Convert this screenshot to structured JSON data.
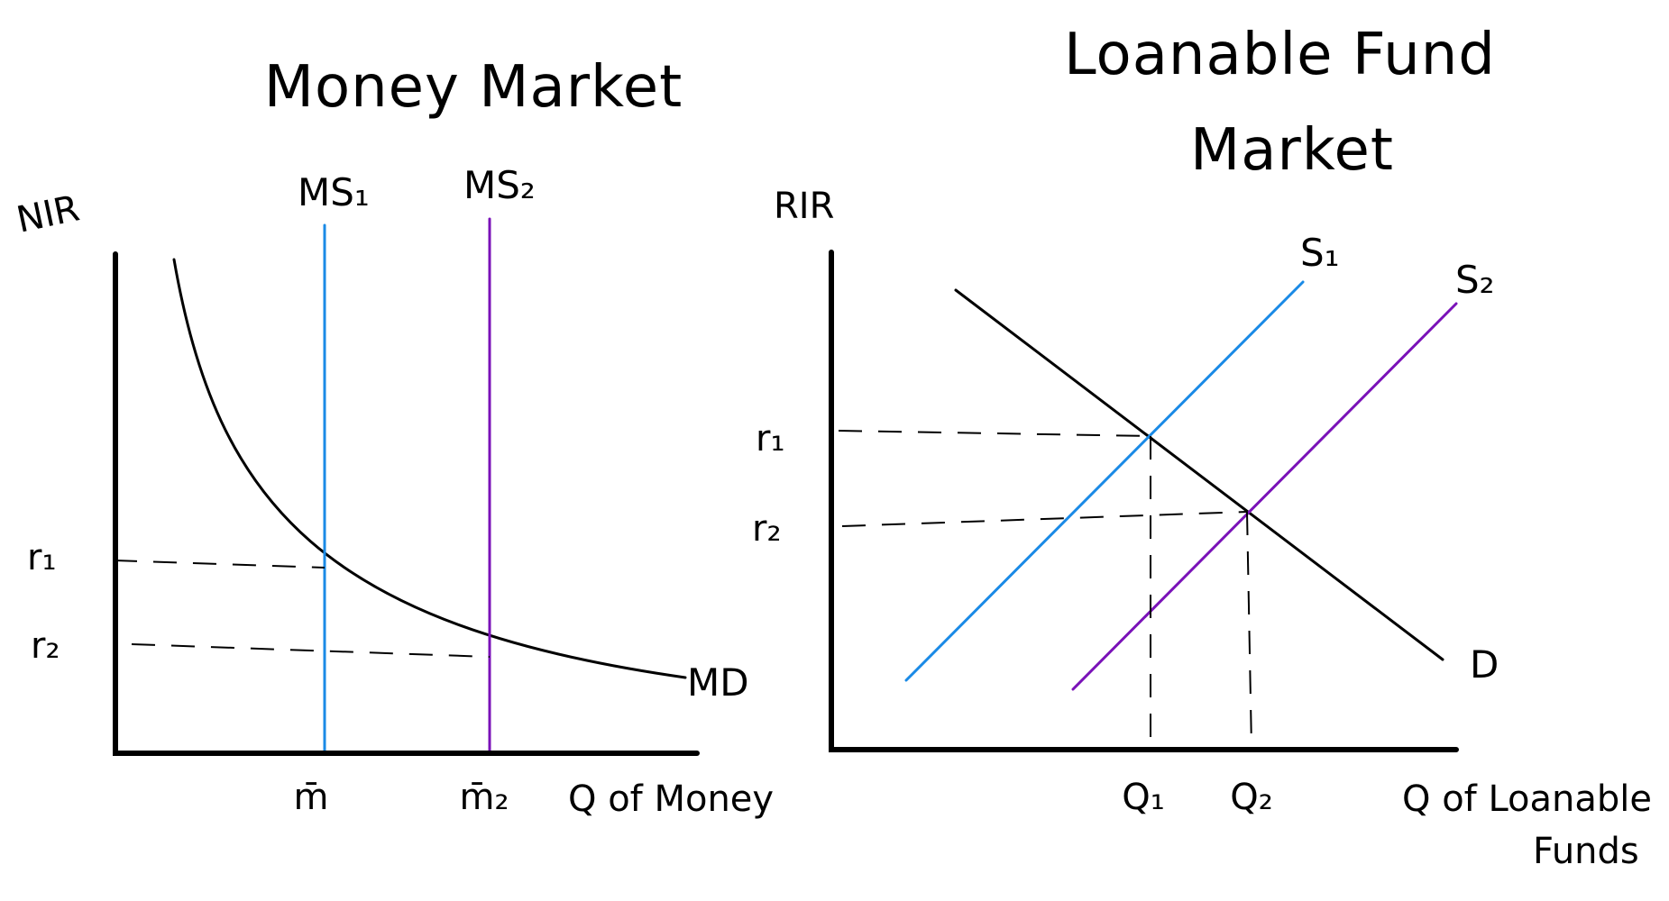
{
  "colors": {
    "ink": "#000000",
    "series1": "#1a8ae6",
    "series2": "#7a12b8"
  },
  "chart_data": [
    {
      "type": "line",
      "title": "Money Market",
      "xlabel": "Q of Money",
      "ylabel": "NIR",
      "grid": false,
      "series": [
        {
          "name": "MD",
          "shape": "downward-sloping curve",
          "color": "#000000"
        },
        {
          "name": "MS₁",
          "shape": "vertical line at m̄",
          "color": "#1a8ae6"
        },
        {
          "name": "MS₂",
          "shape": "vertical line at m̄₂",
          "color": "#7a12b8"
        }
      ],
      "x_ticks": [
        {
          "label": "m̄",
          "color": "#1a8ae6"
        },
        {
          "label": "m̄₂",
          "color": "#7a12b8"
        }
      ],
      "y_ticks": [
        {
          "label": "r₁",
          "color": "#1a8ae6"
        },
        {
          "label": "r₂",
          "color": "#7a12b8"
        }
      ],
      "equilibria": [
        {
          "x": "m̄",
          "y": "r₁",
          "curves": [
            "MD",
            "MS₁"
          ]
        },
        {
          "x": "m̄₂",
          "y": "r₂",
          "curves": [
            "MD",
            "MS₂"
          ]
        }
      ]
    },
    {
      "type": "line",
      "title": "Loanable Fund Market",
      "xlabel": "Q of Loanable Funds",
      "ylabel": "RIR",
      "grid": false,
      "series": [
        {
          "name": "D",
          "shape": "downward-sloping line",
          "color": "#000000"
        },
        {
          "name": "S₁",
          "shape": "upward-sloping line",
          "color": "#1a8ae6"
        },
        {
          "name": "S₂",
          "shape": "upward-sloping line",
          "color": "#7a12b8"
        }
      ],
      "x_ticks": [
        {
          "label": "Q₁",
          "color": "#1a8ae6"
        },
        {
          "label": "Q₂",
          "color": "#7a12b8"
        }
      ],
      "y_ticks": [
        {
          "label": "r₁",
          "color": "#1a8ae6"
        },
        {
          "label": "r₂",
          "color": "#7a12b8"
        }
      ],
      "equilibria": [
        {
          "x": "Q₁",
          "y": "r₁",
          "curves": [
            "D",
            "S₁"
          ]
        },
        {
          "x": "Q₂",
          "y": "r₂",
          "curves": [
            "D",
            "S₂"
          ]
        }
      ]
    }
  ]
}
